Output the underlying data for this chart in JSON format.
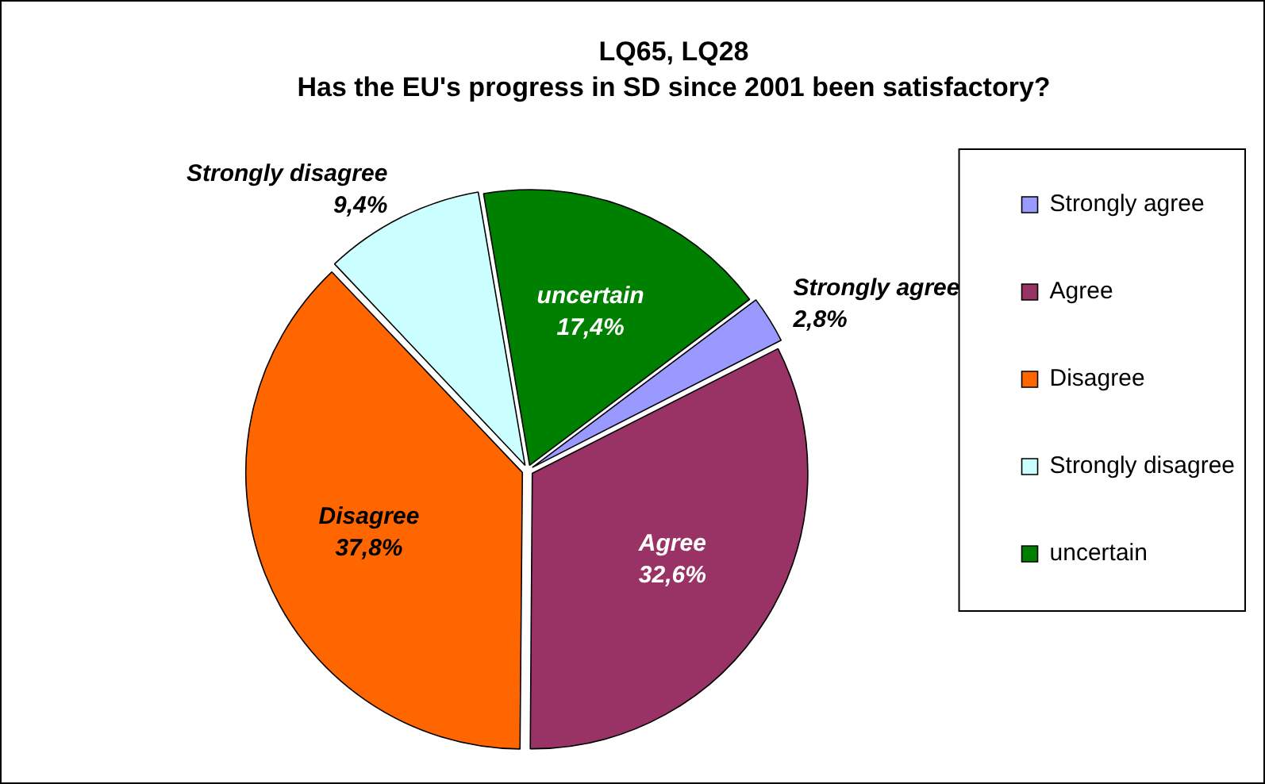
{
  "chart_data": {
    "type": "pie",
    "title": "LQ65, LQ28",
    "subtitle": "Has the EU's progress in SD since 2001 been satisfactory?",
    "categories": [
      "Strongly agree",
      "Agree",
      "Disagree",
      "Strongly disagree",
      "uncertain"
    ],
    "values": [
      2.8,
      32.6,
      37.8,
      9.4,
      17.4
    ],
    "value_labels": [
      "2,8%",
      "32,6%",
      "37,8%",
      "9,4%",
      "17,4%"
    ],
    "colors": [
      "#9999ff",
      "#993366",
      "#ff6600",
      "#ccffff",
      "#008000"
    ],
    "legend": "right"
  }
}
